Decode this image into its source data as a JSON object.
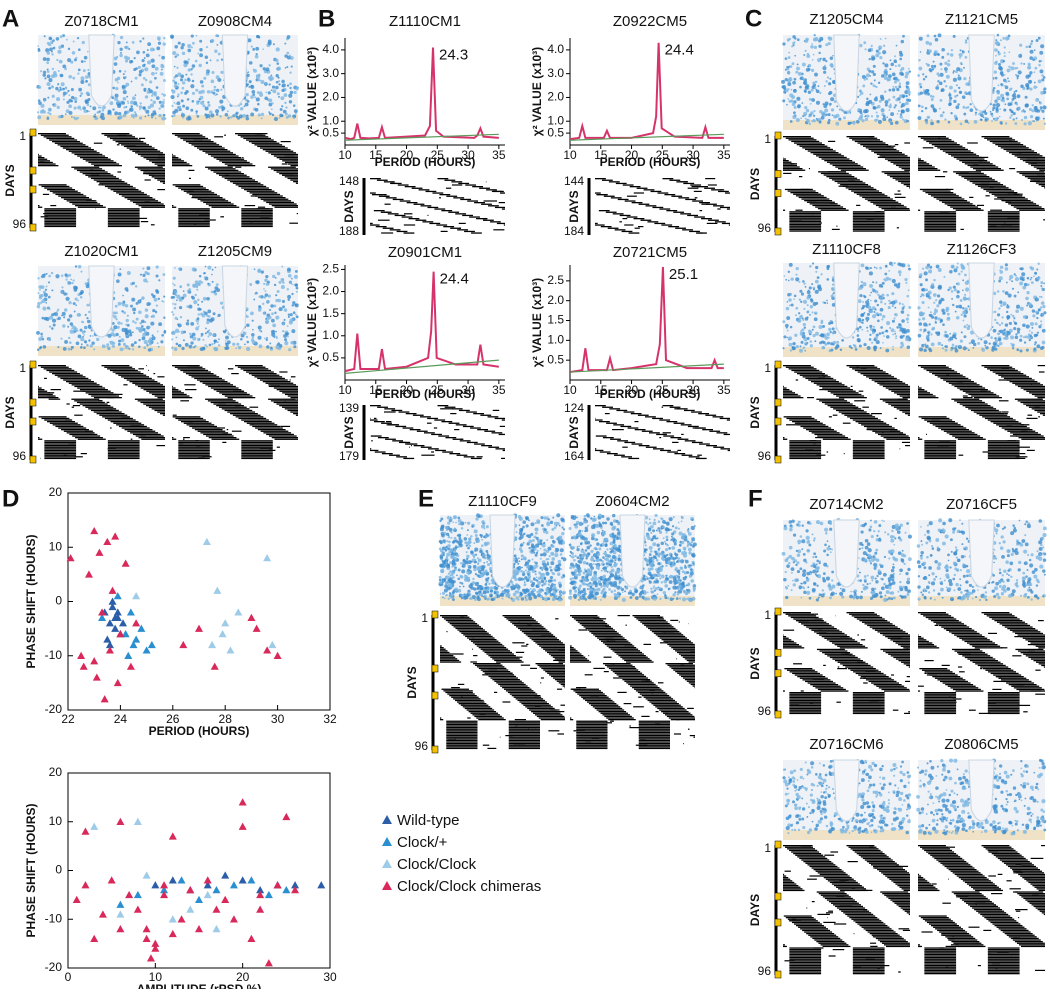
{
  "panels": [
    {
      "label": "A",
      "rows": [
        {
          "samples": [
            "Z0718CM1",
            "Z0908CM4"
          ],
          "days_label": "DAYS",
          "days": [
            "1",
            "96"
          ]
        },
        {
          "samples": [
            "Z1020CM1",
            "Z1205CM9"
          ],
          "days_label": "DAYS",
          "days": [
            "1",
            "96"
          ]
        }
      ]
    },
    {
      "label": "B",
      "rows": [
        {
          "items": [
            {
              "days_label": "DAYS",
              "days": [
                "148",
                "188"
              ]
            },
            {
              "days_label": "DAYS",
              "days": [
                "144",
                "184"
              ]
            }
          ]
        },
        {
          "items": [
            {
              "days_label": "DAYS",
              "days": [
                "139",
                "179"
              ]
            },
            {
              "days_label": "DAYS",
              "days": [
                "124",
                "164"
              ]
            }
          ]
        }
      ]
    },
    {
      "label": "C",
      "rows": [
        {
          "samples": [
            "Z1205CM4",
            "Z1121CM5"
          ],
          "days_label": "DAYS",
          "days": [
            "1",
            "96"
          ]
        },
        {
          "samples": [
            "Z1110CF8",
            "Z1126CF3"
          ],
          "days_label": "DAYS",
          "days": [
            "1",
            "96"
          ]
        }
      ]
    },
    {
      "label": "D"
    },
    {
      "label": "E",
      "rows": [
        {
          "samples": [
            "Z1110CF9",
            "Z0604CM2"
          ],
          "days_label": "DAYS",
          "days": [
            "1",
            "96"
          ]
        }
      ]
    },
    {
      "label": "F",
      "rows": [
        {
          "samples": [
            "Z0714CM2",
            "Z0716CF5"
          ],
          "days_label": "DAYS",
          "days": [
            "1",
            "96"
          ]
        },
        {
          "samples": [
            "Z0716CM6",
            "Z0806CM5"
          ],
          "days_label": "DAYS",
          "days": [
            "1",
            "96"
          ]
        }
      ]
    }
  ],
  "chart_data": [
    {
      "type": "line",
      "title": "Z1110CM1",
      "xlabel": "PERIOD (HOURS)",
      "ylabel": "χ² VALUE (x10³)",
      "peak_label": "24.3",
      "xlim": [
        10,
        36
      ],
      "ylim": [
        0,
        4.5
      ],
      "xticks": [
        10,
        15,
        20,
        25,
        30,
        35
      ],
      "yticks": [
        {
          "value": 0.5,
          "label": "0.5"
        },
        {
          "value": 1,
          "label": "1.0"
        },
        {
          "value": 2,
          "label": "2.0"
        },
        {
          "value": 3,
          "label": "3.0"
        },
        {
          "value": 4,
          "label": "4.0"
        }
      ],
      "series": [
        {
          "color": "#d6336c",
          "x": [
            10,
            11,
            11.5,
            12,
            12.5,
            14,
            15.5,
            16,
            16.5,
            20,
            23,
            23.8,
            24.3,
            24.8,
            26,
            31,
            31.5,
            32,
            32.5,
            35
          ],
          "values": [
            0.3,
            0.25,
            0.3,
            0.9,
            0.3,
            0.28,
            0.3,
            0.75,
            0.3,
            0.35,
            0.4,
            0.8,
            4.1,
            0.6,
            0.35,
            0.3,
            0.4,
            0.7,
            0.35,
            0.3
          ]
        },
        {
          "color": "#5a9a5a",
          "x": [
            10,
            35
          ],
          "values": [
            0.2,
            0.45
          ]
        }
      ]
    },
    {
      "type": "line",
      "title": "Z0922CM5",
      "xlabel": "PERIOD (HOURS)",
      "ylabel": "χ² VALUE (x10³)",
      "peak_label": "24.4",
      "xlim": [
        10,
        36
      ],
      "ylim": [
        0,
        4.5
      ],
      "xticks": [
        10,
        15,
        20,
        25,
        30,
        35
      ],
      "yticks": [
        {
          "value": 0.5,
          "label": "0.5"
        },
        {
          "value": 1,
          "label": "1.0"
        },
        {
          "value": 2,
          "label": "2.0"
        },
        {
          "value": 3,
          "label": "3.0"
        },
        {
          "value": 4,
          "label": "4.0"
        }
      ],
      "series": [
        {
          "color": "#d6336c",
          "x": [
            10,
            11.5,
            12,
            12.5,
            15.5,
            16,
            16.5,
            20,
            23.5,
            24,
            24.4,
            24.9,
            27,
            31.5,
            32,
            32.5,
            35
          ],
          "values": [
            0.25,
            0.3,
            0.8,
            0.3,
            0.3,
            0.6,
            0.3,
            0.3,
            0.5,
            1.2,
            4.3,
            0.7,
            0.35,
            0.3,
            0.75,
            0.3,
            0.3
          ]
        },
        {
          "color": "#5a9a5a",
          "x": [
            10,
            35
          ],
          "values": [
            0.2,
            0.45
          ]
        }
      ]
    },
    {
      "type": "line",
      "title": "Z0901CM1",
      "xlabel": "PERIOD (HOURS)",
      "ylabel": "χ² VALUE (x10³)",
      "peak_label": "24.4",
      "xlim": [
        10,
        36
      ],
      "ylim": [
        0,
        2.6
      ],
      "xticks": [
        10,
        15,
        20,
        25,
        30,
        35
      ],
      "yticks": [
        {
          "value": 0.5,
          "label": "0.5"
        },
        {
          "value": 1,
          "label": "1.0"
        },
        {
          "value": 1.5,
          "label": "1.5"
        },
        {
          "value": 2,
          "label": "2.0"
        },
        {
          "value": 2.5,
          "label": "2.5"
        }
      ],
      "series": [
        {
          "color": "#d6336c",
          "x": [
            10,
            11.5,
            12,
            12.5,
            15.5,
            16,
            16.5,
            20,
            23.5,
            24,
            24.4,
            24.9,
            28,
            31.5,
            32,
            32.5,
            35
          ],
          "values": [
            0.2,
            0.25,
            1.05,
            0.25,
            0.25,
            0.7,
            0.25,
            0.3,
            0.5,
            1.1,
            2.45,
            0.5,
            0.35,
            0.35,
            0.8,
            0.35,
            0.3
          ]
        },
        {
          "color": "#5a9a5a",
          "x": [
            10,
            35
          ],
          "values": [
            0.15,
            0.45
          ]
        }
      ]
    },
    {
      "type": "line",
      "title": "Z0721CM5",
      "xlabel": "PERIOD (HOURS)",
      "ylabel": "χ² VALUE (x10³)",
      "peak_label": "25.1",
      "xlim": [
        10,
        36
      ],
      "ylim": [
        0,
        2.9
      ],
      "xticks": [
        10,
        15,
        20,
        25,
        30,
        35
      ],
      "yticks": [
        {
          "value": 0.5,
          "label": "0.5"
        },
        {
          "value": 1,
          "label": "1.0"
        },
        {
          "value": 1.5,
          "label": "1.5"
        },
        {
          "value": 2,
          "label": "2.0"
        },
        {
          "value": 2.5,
          "label": "2.5"
        }
      ],
      "series": [
        {
          "color": "#d6336c",
          "x": [
            10,
            12,
            12.5,
            13,
            16,
            16.5,
            17,
            20,
            24,
            24.6,
            25.1,
            25.6,
            29,
            33,
            33.5,
            34,
            35
          ],
          "values": [
            0.2,
            0.25,
            0.8,
            0.25,
            0.25,
            0.55,
            0.25,
            0.3,
            0.4,
            0.9,
            2.85,
            0.5,
            0.3,
            0.3,
            0.5,
            0.3,
            0.3
          ]
        },
        {
          "color": "#5a9a5a",
          "x": [
            10,
            35
          ],
          "values": [
            0.2,
            0.4
          ]
        }
      ]
    },
    {
      "type": "scatter",
      "xlabel": "PERIOD (HOURS)",
      "ylabel": "PHASE SHIFT (HOURS)",
      "xlim": [
        22,
        32
      ],
      "ylim": [
        -20,
        20
      ],
      "xticks": [
        22,
        24,
        26,
        28,
        30,
        32
      ],
      "yticks": [
        -20,
        -10,
        0,
        10,
        20
      ],
      "series": [
        {
          "name": "Wild-type",
          "color": "#2b5da8",
          "x": [
            23.4,
            23.6,
            23.7,
            23.8,
            23.9,
            24.0,
            23.5,
            23.7,
            23.9,
            24.1,
            23.6,
            23.8
          ],
          "values": [
            -2,
            -4,
            -1,
            -5,
            -3,
            -6,
            -7,
            0,
            -2,
            -4,
            -8,
            -3
          ]
        },
        {
          "name": "Clock/+",
          "color": "#2a8fd0",
          "x": [
            24.2,
            24.5,
            24.8,
            25.0,
            23.3,
            24.3,
            24.6,
            23.9,
            25.2,
            24.4
          ],
          "values": [
            -6,
            -8,
            -5,
            -9,
            -3,
            -10,
            -7,
            1,
            -8,
            -2
          ]
        },
        {
          "name": "Clock/Clock",
          "color": "#9ecbe8",
          "x": [
            27.3,
            27.7,
            28.0,
            27.5,
            28.2,
            29.6,
            29.8,
            27.9,
            24.6,
            28.5
          ],
          "values": [
            11,
            2,
            -4,
            -8,
            -9,
            8,
            -8,
            -6,
            1,
            -2
          ]
        },
        {
          "name": "Clock/Clock chimeras",
          "color": "#d9285a",
          "x": [
            22.1,
            22.5,
            22.8,
            23.0,
            23.2,
            23.3,
            23.5,
            23.6,
            23.8,
            24.0,
            24.2,
            24.4,
            24.6,
            23.1,
            23.4,
            23.9,
            26.4,
            27.0,
            27.6,
            29.0,
            29.2,
            29.6,
            30.0,
            23.7,
            22.6,
            23.0
          ],
          "values": [
            8,
            -10,
            5,
            13,
            9,
            -2,
            11,
            -9,
            12,
            -6,
            7,
            -12,
            -4,
            -14,
            -18,
            -15,
            -8,
            -5,
            -12,
            -3,
            -5,
            -9,
            -10,
            2,
            -12,
            -11
          ]
        }
      ]
    },
    {
      "type": "scatter",
      "xlabel": "AMPLITUDE (rPSD %)",
      "ylabel": "PHASE SHIFT (HOURS)",
      "xlim": [
        0,
        30
      ],
      "ylim": [
        -20,
        20
      ],
      "xticks": [
        0,
        10,
        20,
        30
      ],
      "yticks": [
        -20,
        -10,
        0,
        10,
        20
      ],
      "legend": true,
      "series": [
        {
          "name": "Wild-type",
          "color": "#2b5da8",
          "x": [
            10,
            12,
            14,
            16,
            18,
            20,
            22,
            24,
            26,
            29
          ],
          "values": [
            -3,
            -2,
            -4,
            -3,
            -1,
            -2,
            -4,
            -3,
            -3,
            -3
          ]
        },
        {
          "name": "Clock/+",
          "color": "#2a8fd0",
          "x": [
            8,
            11,
            13,
            15,
            17,
            19,
            21,
            23,
            25,
            6
          ],
          "values": [
            -5,
            -4,
            -2,
            -6,
            -4,
            -3,
            -2,
            -5,
            -4,
            -7
          ]
        },
        {
          "name": "Clock/Clock",
          "color": "#9ecbe8",
          "x": [
            3,
            8,
            9,
            12,
            17,
            14,
            6,
            16
          ],
          "values": [
            9,
            10,
            -1,
            -10,
            -12,
            -8,
            -9,
            -5
          ]
        },
        {
          "name": "Clock/Clock chimeras",
          "color": "#d9285a",
          "x": [
            1,
            2,
            3,
            4,
            5,
            6,
            7,
            8,
            9,
            10,
            11,
            12,
            13,
            14,
            15,
            16,
            17,
            18,
            19,
            20,
            21,
            22,
            23,
            24,
            25,
            26,
            2,
            6,
            9,
            10,
            12,
            20,
            22,
            9.5,
            11
          ],
          "values": [
            -6,
            -3,
            -14,
            -9,
            -2,
            10,
            -5,
            -8,
            -12,
            -16,
            -3,
            7,
            -10,
            -4,
            -12,
            -2,
            -8,
            -6,
            -10,
            14,
            -14,
            -5,
            -19,
            -3,
            11,
            -4,
            8,
            -12,
            -14,
            -15,
            -13,
            9,
            -8,
            -18,
            -5
          ]
        }
      ]
    }
  ]
}
